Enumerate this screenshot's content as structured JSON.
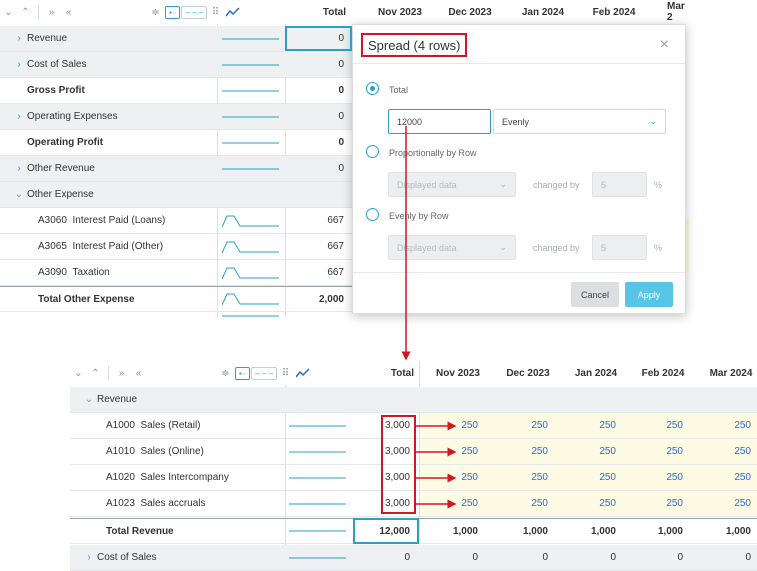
{
  "top_grid": {
    "total_header": "Total",
    "months": [
      "Nov 2023",
      "Dec 2023",
      "Jan 2024",
      "Feb 2024",
      "Mar 2"
    ],
    "rows": [
      {
        "label": "Revenue",
        "chev": "right",
        "value": "0",
        "kind": "group"
      },
      {
        "label": "Cost of Sales",
        "chev": "right",
        "value": "0",
        "kind": "group"
      },
      {
        "label": "Gross Profit",
        "chev": "",
        "value": "0",
        "kind": "bold"
      },
      {
        "label": "Operating Expenses",
        "chev": "right",
        "value": "0",
        "kind": "group"
      },
      {
        "label": "Operating Profit",
        "chev": "",
        "value": "0",
        "kind": "bold"
      },
      {
        "label": "Other Revenue",
        "chev": "right",
        "value": "0",
        "kind": "group"
      },
      {
        "label": "Other Expense",
        "chev": "down",
        "value": "",
        "kind": "group"
      },
      {
        "code": "A3060",
        "label": "Interest Paid (Loans)",
        "value": "667",
        "kind": "child"
      },
      {
        "code": "A3065",
        "label": "Interest Paid (Other)",
        "value": "667",
        "kind": "child"
      },
      {
        "code": "A3090",
        "label": "Taxation",
        "value": "667",
        "kind": "child"
      },
      {
        "label": "Total Other Expense",
        "chev": "",
        "value": "2,000",
        "kind": "total"
      }
    ]
  },
  "dialog": {
    "title": "Spread (4 rows)",
    "option_total": "Total",
    "total_value": "12000",
    "method": "Evenly",
    "option_proportional": "Proportionally by Row",
    "option_evenly_by_row": "Evenly by Row",
    "displayed_data": "Displayed data",
    "changed_by": "changed by",
    "changed_value": "5",
    "percent": "%",
    "cancel": "Cancel",
    "apply": "Apply"
  },
  "bottom_grid": {
    "total_header": "Total",
    "months": [
      "Nov 2023",
      "Dec 2023",
      "Jan 2024",
      "Feb 2024",
      "Mar 2024"
    ],
    "group_label": "Revenue",
    "children": [
      {
        "code": "A1000",
        "label": "Sales (Retail)",
        "total": "3,000",
        "values": [
          "250",
          "250",
          "250",
          "250",
          "250"
        ]
      },
      {
        "code": "A1010",
        "label": "Sales (Online)",
        "total": "3,000",
        "values": [
          "250",
          "250",
          "250",
          "250",
          "250"
        ]
      },
      {
        "code": "A1020",
        "label": "Sales Intercompany",
        "total": "3,000",
        "values": [
          "250",
          "250",
          "250",
          "250",
          "250"
        ]
      },
      {
        "code": "A1023",
        "label": "Sales accruals",
        "total": "3,000",
        "values": [
          "250",
          "250",
          "250",
          "250",
          "250"
        ]
      }
    ],
    "total_row": {
      "label": "Total Revenue",
      "total": "12,000",
      "values": [
        "1,000",
        "1,000",
        "1,000",
        "1,000",
        "1,000"
      ]
    },
    "cost_row": {
      "label": "Cost of Sales",
      "total": "0",
      "values": [
        "0",
        "0",
        "0",
        "0",
        "0"
      ]
    }
  },
  "colors": {
    "accent": "#2aa0c8",
    "highlight": "#d0191e",
    "spread_cells": "#fdfbe4",
    "value_blue": "#2a6bd1"
  }
}
